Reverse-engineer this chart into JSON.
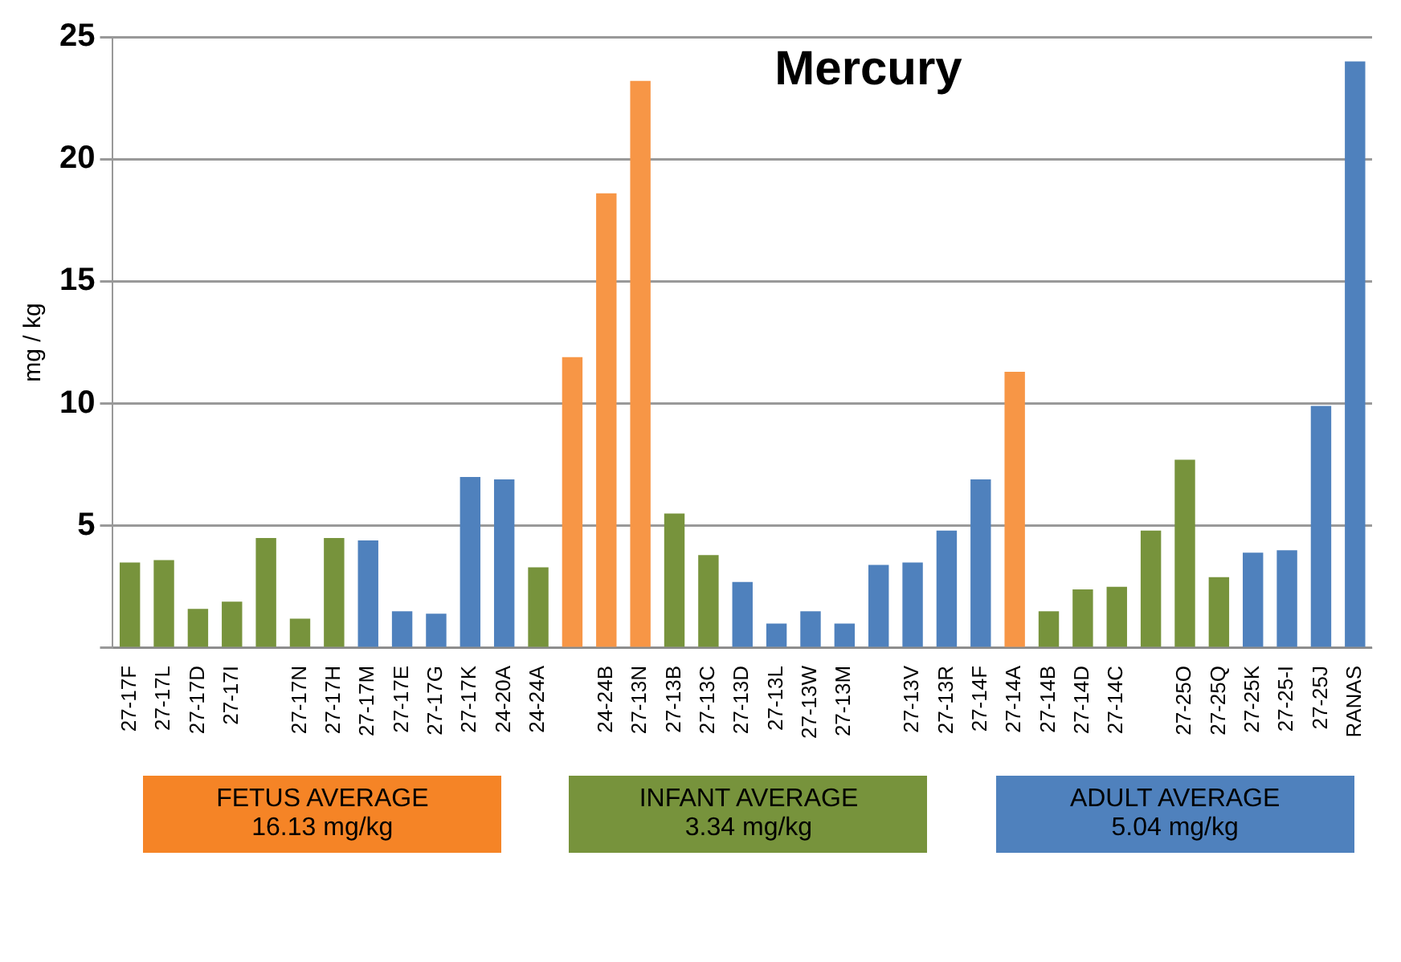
{
  "chart_data": {
    "type": "bar",
    "title": "Mercury",
    "ylabel": "mg / kg",
    "categories": [
      "27-17F",
      "27-17L",
      "27-17D",
      "27-17I",
      null,
      "27-17N",
      "27-17H",
      "27-17M",
      "27-17E",
      "27-17G",
      "27-17K",
      "24-20A",
      "24-24A",
      null,
      "24-24B",
      "27-13N",
      "27-13B",
      "27-13C",
      "27-13D",
      "27-13L",
      "27-13W",
      "27-13M",
      null,
      "27-13V",
      "27-13R",
      "27-14F",
      "27-14A",
      "27-14B",
      "27-14D",
      "27-14C",
      null,
      "27-25O",
      "27-25Q",
      "27-25K",
      "27-25-I",
      "27-25J",
      "RANAS"
    ],
    "values": [
      3.5,
      3.6,
      1.6,
      1.9,
      4.5,
      1.2,
      4.5,
      4.4,
      1.5,
      1.4,
      7.0,
      6.9,
      3.3,
      11.9,
      18.6,
      23.2,
      5.5,
      3.8,
      2.7,
      1.0,
      1.5,
      1.0,
      3.4,
      3.5,
      4.8,
      6.9,
      11.3,
      1.5,
      2.4,
      2.5,
      4.8,
      7.7,
      2.9,
      3.9,
      4.0,
      9.9,
      24.0
    ],
    "colors": [
      "#77933c",
      "#77933c",
      "#77933c",
      "#77933c",
      "#77933c",
      "#77933c",
      "#77933c",
      "#4f81bd",
      "#4f81bd",
      "#4f81bd",
      "#4f81bd",
      "#4f81bd",
      "#77933c",
      "#f79646",
      "#f79646",
      "#f79646",
      "#77933c",
      "#77933c",
      "#4f81bd",
      "#4f81bd",
      "#4f81bd",
      "#4f81bd",
      "#4f81bd",
      "#4f81bd",
      "#4f81bd",
      "#4f81bd",
      "#f79646",
      "#77933c",
      "#77933c",
      "#77933c",
      "#77933c",
      "#77933c",
      "#77933c",
      "#4f81bd",
      "#4f81bd",
      "#4f81bd",
      "#4f81bd"
    ],
    "ylim": [
      0,
      25
    ],
    "yticks": [
      {
        "value": 0,
        "label": null
      },
      5,
      10,
      15,
      20,
      25
    ],
    "grid": "y",
    "legend": false,
    "annotations": [
      "FETUS AVERAGE\n16.13 mg/kg",
      "INFANT AVERAGE\n3.34 mg/kg",
      "ADULT AVERAGE\n5.04 mg/kg"
    ]
  }
}
